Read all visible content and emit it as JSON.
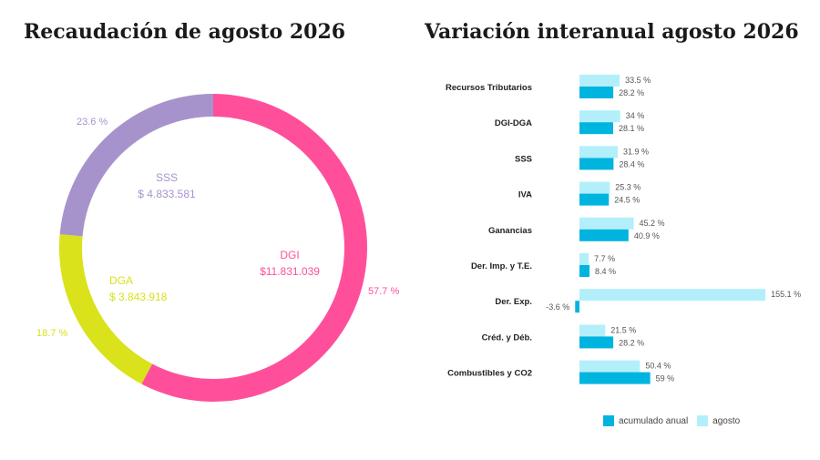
{
  "titles": {
    "left": "Recaudación de agosto 2026",
    "right": "Variación interanual agosto 2026"
  },
  "colors": {
    "dgi": "#ff4f9a",
    "dga": "#d9e21a",
    "sss": "#a793cc",
    "acumulado": "#00b4e0",
    "agosto": "#b3effb"
  },
  "chart_data": [
    {
      "type": "pie",
      "title": "Recaudación de agosto 2026",
      "slices": [
        {
          "name": "DGI",
          "amount": "$11.831.039",
          "value": 57.7,
          "label": "57.7 %",
          "color": "#ff4f9a"
        },
        {
          "name": "DGA",
          "amount": "$ 3.843.918",
          "value": 18.7,
          "label": "18.7 %",
          "color": "#d9e21a"
        },
        {
          "name": "SSS",
          "amount": "$ 4.833.581",
          "value": 23.6,
          "label": "23.6 %",
          "color": "#a793cc"
        }
      ]
    },
    {
      "type": "bar",
      "orientation": "horizontal",
      "title": "Variación interanual agosto 2026",
      "categories": [
        "Recursos Tributarios",
        "DGI-DGA",
        "SSS",
        "IVA",
        "Ganancias",
        "Der. Imp. y T.E.",
        "Der. Exp.",
        "Créd. y Déb.",
        "Combustibles y CO2"
      ],
      "series": [
        {
          "name": "agosto",
          "values": [
            33.5,
            34,
            31.9,
            25.3,
            45.2,
            7.7,
            155.1,
            21.5,
            50.4
          ],
          "labels": [
            "33.5 %",
            "34 %",
            "31.9 %",
            "25.3 %",
            "45.2 %",
            "7.7 %",
            "155.1 %",
            "21.5 %",
            "50.4 %"
          ]
        },
        {
          "name": "acumulado anual",
          "values": [
            28.2,
            28.1,
            28.4,
            24.5,
            40.9,
            8.4,
            -3.6,
            28.2,
            59
          ],
          "labels": [
            "28.2 %",
            "28.1 %",
            "28.4 %",
            "24.5 %",
            "40.9 %",
            "8.4 %",
            "-3.6 %",
            "28.2 %",
            "59 %"
          ]
        }
      ],
      "legend": [
        "acumulado anual",
        "agosto"
      ],
      "legend_position": "bottom"
    }
  ]
}
